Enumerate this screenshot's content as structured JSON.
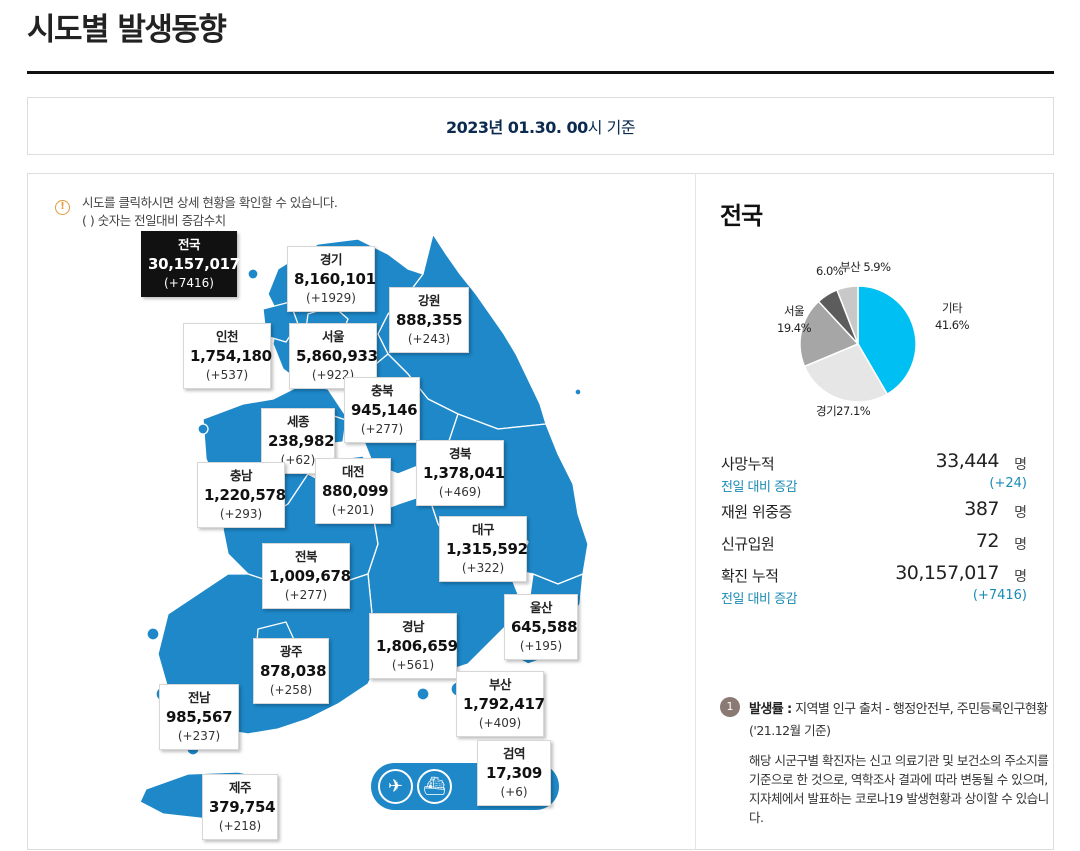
{
  "page_title": "시도별 발생동향",
  "date_banner": {
    "date": "2023년 01.30. 00",
    "suffix": "시 기준"
  },
  "info": {
    "icon": "info-icon",
    "line1": "시도를 클릭하시면 상세 현황을 확인할 수 있습니다.",
    "line2": "( ) 숫자는 전일대비 증감수치"
  },
  "regions": [
    {
      "id": "national",
      "name": "전국",
      "total": "30,157,017",
      "delta": "(+7416)"
    },
    {
      "id": "gyeonggi",
      "name": "경기",
      "total": "8,160,101",
      "delta": "(+1929)"
    },
    {
      "id": "gangwon",
      "name": "강원",
      "total": "888,355",
      "delta": "(+243)"
    },
    {
      "id": "incheon",
      "name": "인천",
      "total": "1,754,180",
      "delta": "(+537)"
    },
    {
      "id": "seoul",
      "name": "서울",
      "total": "5,860,933",
      "delta": "(+922)"
    },
    {
      "id": "chungbuk",
      "name": "충북",
      "total": "945,146",
      "delta": "(+277)"
    },
    {
      "id": "sejong",
      "name": "세종",
      "total": "238,982",
      "delta": "(+62)"
    },
    {
      "id": "gyeongbuk",
      "name": "경북",
      "total": "1,378,041",
      "delta": "(+469)"
    },
    {
      "id": "chungnam",
      "name": "충남",
      "total": "1,220,578",
      "delta": "(+293)"
    },
    {
      "id": "daejeon",
      "name": "대전",
      "total": "880,099",
      "delta": "(+201)"
    },
    {
      "id": "daegu",
      "name": "대구",
      "total": "1,315,592",
      "delta": "(+322)"
    },
    {
      "id": "jeonbuk",
      "name": "전북",
      "total": "1,009,678",
      "delta": "(+277)"
    },
    {
      "id": "ulsan",
      "name": "울산",
      "total": "645,588",
      "delta": "(+195)"
    },
    {
      "id": "gyeongnam",
      "name": "경남",
      "total": "1,806,659",
      "delta": "(+561)"
    },
    {
      "id": "gwangju",
      "name": "광주",
      "total": "878,038",
      "delta": "(+258)"
    },
    {
      "id": "busan",
      "name": "부산",
      "total": "1,792,417",
      "delta": "(+409)"
    },
    {
      "id": "jeonnam",
      "name": "전남",
      "total": "985,567",
      "delta": "(+237)"
    },
    {
      "id": "quarantine",
      "name": "검역",
      "total": "17,309",
      "delta": "(+6)"
    },
    {
      "id": "jeju",
      "name": "제주",
      "total": "379,754",
      "delta": "(+218)"
    }
  ],
  "transport_icons": [
    "airplane-icon",
    "ship-icon"
  ],
  "side": {
    "title": "전국",
    "pie": {
      "colors": [
        "#00bff3",
        "#e6e6e6",
        "#a6a6a6",
        "#5c5c5c",
        "#c8c8c8"
      ],
      "labels": [
        {
          "name": "기타",
          "pct": "41.6%"
        },
        {
          "name": "경기",
          "pct": "27.1%"
        },
        {
          "name": "서울",
          "pct": "19.4%"
        },
        {
          "name": "",
          "pct": "6.0%"
        },
        {
          "name": "부산",
          "pct": "5.9%"
        }
      ]
    },
    "stats": {
      "deaths_label": "사망누적",
      "deaths_value": "33,444",
      "deaths_unit": "명",
      "deaths_sub_label": "전일 대비 증감",
      "deaths_sub_value": "(+24)",
      "severe_label": "재원 위중증",
      "severe_value": "387",
      "severe_unit": "명",
      "admit_label": "신규입원",
      "admit_value": "72",
      "admit_unit": "명",
      "cases_label": "확진 누적",
      "cases_value": "30,157,017",
      "cases_unit": "명",
      "cases_sub_label": "전일 대비 증감",
      "cases_sub_value": "(+7416)"
    },
    "note": {
      "badge": "1",
      "title": "발생률 :",
      "line1": " 지역별 인구 출처 - 행정안전부, 주민등록인구현황",
      "line2": "('21.12월 기준)",
      "body": "해당 시군구별 확진자는 신고 의료기관 및 보건소의 주소지를 기준으로 한 것으로, 역학조사 결과에 따라 변동될 수 있으며, 지자체에서 발표하는 코로나19 발생현황과 상이할 수 있습니다."
    }
  },
  "chart_data": {
    "type": "pie",
    "categories": [
      "기타",
      "경기",
      "서울",
      "",
      "부산"
    ],
    "values": [
      41.6,
      27.1,
      19.4,
      6.0,
      5.9
    ]
  }
}
